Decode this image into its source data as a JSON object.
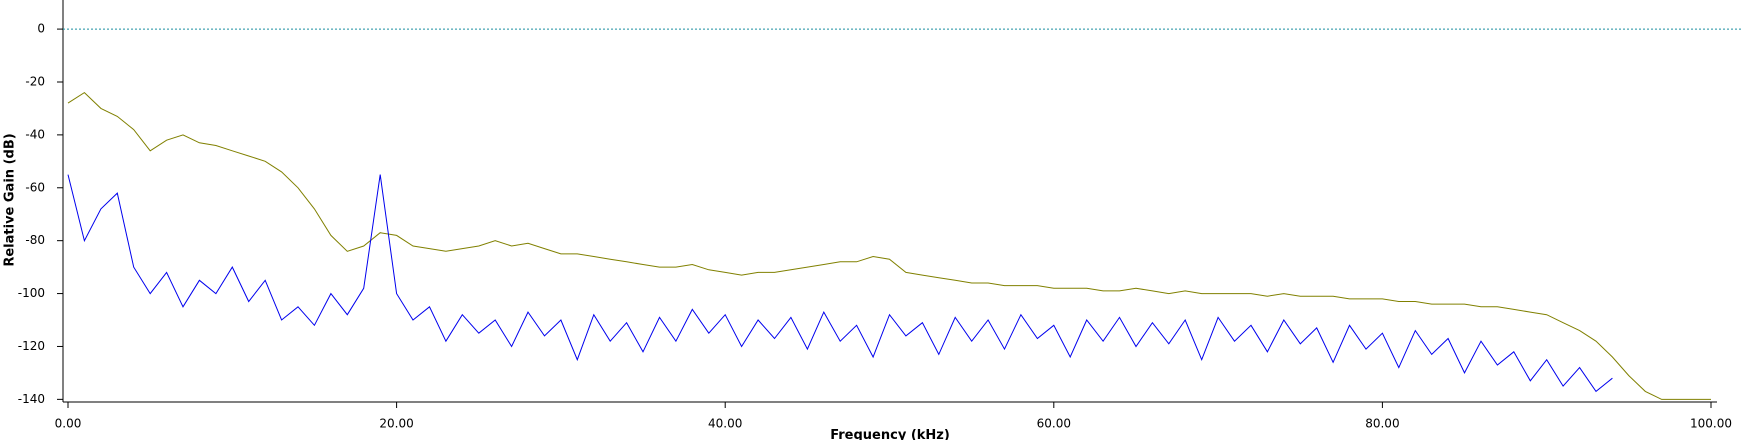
{
  "chart_data": {
    "type": "line",
    "xlabel": "Frequency (kHz)",
    "ylabel": "Relative Gain (dB)",
    "xlim": [
      0,
      100
    ],
    "ylim": [
      -141,
      11
    ],
    "xticks": [
      {
        "value": 0,
        "label": "0.00"
      },
      {
        "value": 20,
        "label": "20.00"
      },
      {
        "value": 40,
        "label": "40.00"
      },
      {
        "value": 60,
        "label": "60.00"
      },
      {
        "value": 80,
        "label": "80.00"
      },
      {
        "value": 100,
        "label": "100.00"
      }
    ],
    "yticks": [
      0,
      -20,
      -40,
      -60,
      -80,
      -100,
      -120,
      -140
    ],
    "reference_line": {
      "value": 0,
      "color": "#1a8fa0"
    },
    "series": [
      {
        "color": "#808000",
        "x": [
          0,
          1,
          2,
          3,
          4,
          5,
          6,
          7,
          8,
          9,
          10,
          11,
          12,
          13,
          14,
          15,
          16,
          17,
          18,
          19,
          20,
          21,
          22,
          23,
          24,
          25,
          26,
          27,
          28,
          29,
          30,
          31,
          32,
          33,
          34,
          35,
          36,
          37,
          38,
          39,
          40,
          41,
          42,
          43,
          44,
          45,
          46,
          47,
          48,
          49,
          50,
          51,
          52,
          53,
          54,
          55,
          56,
          57,
          58,
          59,
          60,
          61,
          62,
          63,
          64,
          65,
          66,
          67,
          68,
          69,
          70,
          71,
          72,
          73,
          74,
          75,
          76,
          77,
          78,
          79,
          80,
          81,
          82,
          83,
          84,
          85,
          86,
          87,
          88,
          89,
          90,
          91,
          92,
          93,
          94,
          95,
          96,
          97,
          98,
          99,
          100
        ],
        "values": [
          -28,
          -24,
          -30,
          -33,
          -38,
          -46,
          -42,
          -40,
          -43,
          -44,
          -46,
          -48,
          -50,
          -54,
          -60,
          -68,
          -78,
          -84,
          -82,
          -77,
          -78,
          -82,
          -83,
          -84,
          -83,
          -82,
          -80,
          -82,
          -81,
          -83,
          -85,
          -85,
          -86,
          -87,
          -88,
          -89,
          -90,
          -90,
          -89,
          -91,
          -92,
          -93,
          -92,
          -92,
          -91,
          -90,
          -89,
          -88,
          -88,
          -86,
          -87,
          -92,
          -93,
          -94,
          -95,
          -96,
          -96,
          -97,
          -97,
          -97,
          -98,
          -98,
          -98,
          -99,
          -99,
          -98,
          -99,
          -100,
          -99,
          -100,
          -100,
          -100,
          -100,
          -101,
          -100,
          -101,
          -101,
          -101,
          -102,
          -102,
          -102,
          -103,
          -103,
          -104,
          -104,
          -104,
          -105,
          -105,
          -106,
          -107,
          -108,
          -111,
          -114,
          -118,
          -124,
          -131,
          -137,
          -140,
          -140,
          -140,
          -140
        ]
      },
      {
        "color": "#0000ee",
        "x": [
          0,
          1,
          2,
          3,
          4,
          5,
          6,
          7,
          8,
          9,
          10,
          11,
          12,
          13,
          14,
          15,
          16,
          17,
          18,
          19,
          20,
          21,
          22,
          23,
          24,
          25,
          26,
          27,
          28,
          29,
          30,
          31,
          32,
          33,
          34,
          35,
          36,
          37,
          38,
          39,
          40,
          41,
          42,
          43,
          44,
          45,
          46,
          47,
          48,
          49,
          50,
          51,
          52,
          53,
          54,
          55,
          56,
          57,
          58,
          59,
          60,
          61,
          62,
          63,
          64,
          65,
          66,
          67,
          68,
          69,
          70,
          71,
          72,
          73,
          74,
          75,
          76,
          77,
          78,
          79,
          80,
          81,
          82,
          83,
          84,
          85,
          86,
          87,
          88,
          89,
          90,
          91,
          92,
          93,
          94
        ],
        "values": [
          -55,
          -80,
          -68,
          -62,
          -90,
          -100,
          -92,
          -105,
          -95,
          -100,
          -90,
          -103,
          -95,
          -110,
          -105,
          -112,
          -100,
          -108,
          -98,
          -55,
          -100,
          -110,
          -105,
          -118,
          -108,
          -115,
          -110,
          -120,
          -107,
          -116,
          -110,
          -125,
          -108,
          -118,
          -111,
          -122,
          -109,
          -118,
          -106,
          -115,
          -108,
          -120,
          -110,
          -117,
          -109,
          -121,
          -107,
          -118,
          -112,
          -124,
          -108,
          -116,
          -111,
          -123,
          -109,
          -118,
          -110,
          -121,
          -108,
          -117,
          -112,
          -124,
          -110,
          -118,
          -109,
          -120,
          -111,
          -119,
          -110,
          -125,
          -109,
          -118,
          -112,
          -122,
          -110,
          -119,
          -113,
          -126,
          -112,
          -121,
          -115,
          -128,
          -114,
          -123,
          -117,
          -130,
          -118,
          -127,
          -122,
          -133,
          -125,
          -135,
          -128,
          -137,
          -132
        ]
      }
    ]
  }
}
